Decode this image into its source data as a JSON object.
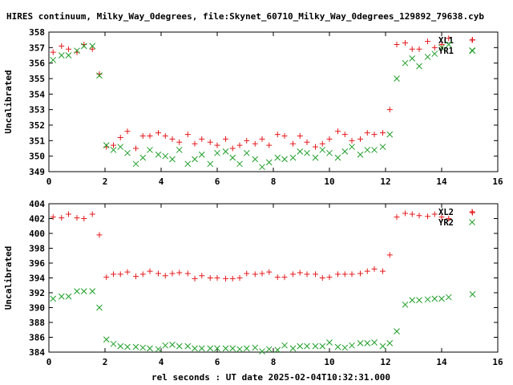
{
  "title": "HIRES continuum, Milky_Way_0degrees, file:Skynet_60710_Milky_Way_0degrees_129892_79638.cyb",
  "xlabel": "rel seconds : UT date 2025-02-04T10:32:31.000",
  "colors": {
    "series1": "#e41a1c",
    "series2": "#1e9e28",
    "axis": "#000000"
  },
  "chart_data": [
    {
      "type": "scatter",
      "ylabel": "Uncalibrated",
      "xlim": [
        0,
        16
      ],
      "ylim": [
        349,
        358
      ],
      "xticks": [
        "0",
        "2",
        "4",
        "6",
        "8",
        "10",
        "12",
        "14",
        "16"
      ],
      "yticks": [
        "349",
        "350",
        "351",
        "352",
        "353",
        "354",
        "355",
        "356",
        "357",
        "358"
      ],
      "legend_position": "top-right",
      "grid": false,
      "series": [
        {
          "name": "XL1",
          "marker": "plus",
          "x": [
            0.15,
            0.45,
            0.7,
            1.0,
            1.25,
            1.55,
            1.8,
            2.05,
            2.3,
            2.55,
            2.8,
            3.1,
            3.35,
            3.6,
            3.9,
            4.15,
            4.4,
            4.65,
            4.95,
            5.2,
            5.45,
            5.75,
            6.0,
            6.3,
            6.55,
            6.8,
            7.05,
            7.35,
            7.6,
            7.85,
            8.15,
            8.4,
            8.7,
            8.95,
            9.2,
            9.5,
            9.75,
            10.0,
            10.3,
            10.55,
            10.8,
            11.1,
            11.35,
            11.6,
            11.9,
            12.15,
            12.4,
            12.7,
            12.95,
            13.2,
            13.5,
            13.75,
            14.0,
            14.25,
            15.1
          ],
          "y": [
            356.7,
            357.1,
            356.9,
            356.7,
            357.2,
            356.9,
            355.3,
            350.6,
            350.7,
            351.2,
            351.6,
            350.5,
            351.3,
            351.3,
            351.5,
            351.3,
            351.1,
            350.9,
            351.4,
            350.8,
            351.1,
            350.9,
            350.7,
            351.1,
            350.5,
            350.7,
            351.0,
            350.8,
            351.1,
            350.7,
            351.4,
            351.3,
            350.8,
            351.3,
            350.9,
            350.6,
            350.8,
            351.1,
            351.6,
            351.4,
            351.0,
            351.1,
            351.5,
            351.4,
            351.5,
            353.0,
            357.2,
            357.3,
            356.9,
            356.9,
            357.4,
            357.0,
            357.2,
            357.6,
            357.5
          ]
        },
        {
          "name": "YR1",
          "marker": "x",
          "x": [
            0.15,
            0.45,
            0.7,
            1.0,
            1.25,
            1.55,
            1.8,
            2.05,
            2.3,
            2.55,
            2.8,
            3.1,
            3.35,
            3.6,
            3.9,
            4.15,
            4.4,
            4.65,
            4.95,
            5.2,
            5.45,
            5.75,
            6.0,
            6.3,
            6.55,
            6.8,
            7.05,
            7.35,
            7.6,
            7.85,
            8.15,
            8.4,
            8.7,
            8.95,
            9.2,
            9.5,
            9.75,
            10.0,
            10.3,
            10.55,
            10.8,
            11.1,
            11.35,
            11.6,
            11.9,
            12.15,
            12.4,
            12.7,
            12.95,
            13.2,
            13.5,
            13.75,
            14.0,
            14.25,
            15.1
          ],
          "y": [
            356.2,
            356.5,
            356.5,
            356.8,
            357.1,
            357.1,
            355.2,
            350.7,
            350.4,
            350.6,
            350.2,
            349.5,
            349.9,
            350.4,
            350.1,
            350.0,
            349.8,
            350.4,
            349.5,
            349.8,
            350.1,
            349.5,
            350.2,
            350.3,
            349.9,
            349.5,
            350.2,
            349.8,
            349.3,
            349.6,
            349.9,
            349.8,
            349.9,
            350.3,
            350.2,
            349.9,
            350.4,
            350.2,
            349.9,
            350.3,
            350.6,
            350.1,
            350.4,
            350.4,
            350.6,
            351.4,
            355.0,
            356.0,
            356.3,
            355.8,
            356.4,
            356.6,
            357.0,
            357.2,
            356.8
          ]
        }
      ]
    },
    {
      "type": "scatter",
      "ylabel": "Uncalibrated",
      "xlim": [
        0,
        16
      ],
      "ylim": [
        384,
        404
      ],
      "xticks": [
        "0",
        "2",
        "4",
        "6",
        "8",
        "10",
        "12",
        "14",
        "16"
      ],
      "yticks": [
        "384",
        "386",
        "388",
        "390",
        "392",
        "394",
        "396",
        "398",
        "400",
        "402",
        "404"
      ],
      "legend_position": "top-right",
      "grid": false,
      "series": [
        {
          "name": "XL2",
          "marker": "plus",
          "x": [
            0.15,
            0.45,
            0.7,
            1.0,
            1.25,
            1.55,
            1.8,
            2.05,
            2.3,
            2.55,
            2.8,
            3.1,
            3.35,
            3.6,
            3.9,
            4.15,
            4.4,
            4.65,
            4.95,
            5.2,
            5.45,
            5.75,
            6.0,
            6.3,
            6.55,
            6.8,
            7.05,
            7.35,
            7.6,
            7.85,
            8.15,
            8.4,
            8.7,
            8.95,
            9.2,
            9.5,
            9.75,
            10.0,
            10.3,
            10.55,
            10.8,
            11.1,
            11.35,
            11.6,
            11.9,
            12.15,
            12.4,
            12.7,
            12.95,
            13.2,
            13.5,
            13.75,
            14.0,
            14.25,
            15.1
          ],
          "y": [
            402.2,
            402.1,
            402.6,
            402.1,
            402.0,
            402.6,
            399.8,
            394.1,
            394.5,
            394.5,
            394.8,
            394.2,
            394.5,
            394.9,
            394.6,
            394.3,
            394.6,
            394.7,
            394.6,
            393.9,
            394.3,
            394.0,
            394.0,
            393.9,
            393.9,
            394.0,
            394.6,
            394.5,
            394.6,
            394.8,
            394.1,
            394.1,
            394.5,
            394.7,
            394.5,
            394.5,
            394.0,
            394.1,
            394.5,
            394.5,
            394.5,
            394.6,
            394.9,
            395.2,
            394.9,
            397.1,
            402.2,
            402.7,
            402.6,
            402.4,
            402.3,
            402.6,
            402.2,
            402.0,
            402.8
          ]
        },
        {
          "name": "YR2",
          "marker": "x",
          "x": [
            0.15,
            0.45,
            0.7,
            1.0,
            1.25,
            1.55,
            1.8,
            2.05,
            2.3,
            2.55,
            2.8,
            3.1,
            3.35,
            3.6,
            3.9,
            4.15,
            4.4,
            4.65,
            4.95,
            5.2,
            5.45,
            5.75,
            6.0,
            6.3,
            6.55,
            6.8,
            7.05,
            7.35,
            7.6,
            7.85,
            8.15,
            8.4,
            8.7,
            8.95,
            9.2,
            9.5,
            9.75,
            10.0,
            10.3,
            10.55,
            10.8,
            11.1,
            11.35,
            11.6,
            11.9,
            12.15,
            12.4,
            12.7,
            12.95,
            13.2,
            13.5,
            13.75,
            14.0,
            14.25,
            15.1
          ],
          "y": [
            391.2,
            391.5,
            391.5,
            392.2,
            392.2,
            392.2,
            390.0,
            385.7,
            385.1,
            384.8,
            384.7,
            384.7,
            384.6,
            384.5,
            384.4,
            384.9,
            385.0,
            384.8,
            384.8,
            384.5,
            384.5,
            384.5,
            384.5,
            384.5,
            384.5,
            384.4,
            384.5,
            384.6,
            384.1,
            384.4,
            384.3,
            384.9,
            384.5,
            384.8,
            384.8,
            384.8,
            384.8,
            385.3,
            384.7,
            384.6,
            384.9,
            385.2,
            385.2,
            385.3,
            384.8,
            385.2,
            386.8,
            390.4,
            391.0,
            391.0,
            391.1,
            391.2,
            391.2,
            391.4,
            391.8
          ]
        }
      ]
    }
  ]
}
